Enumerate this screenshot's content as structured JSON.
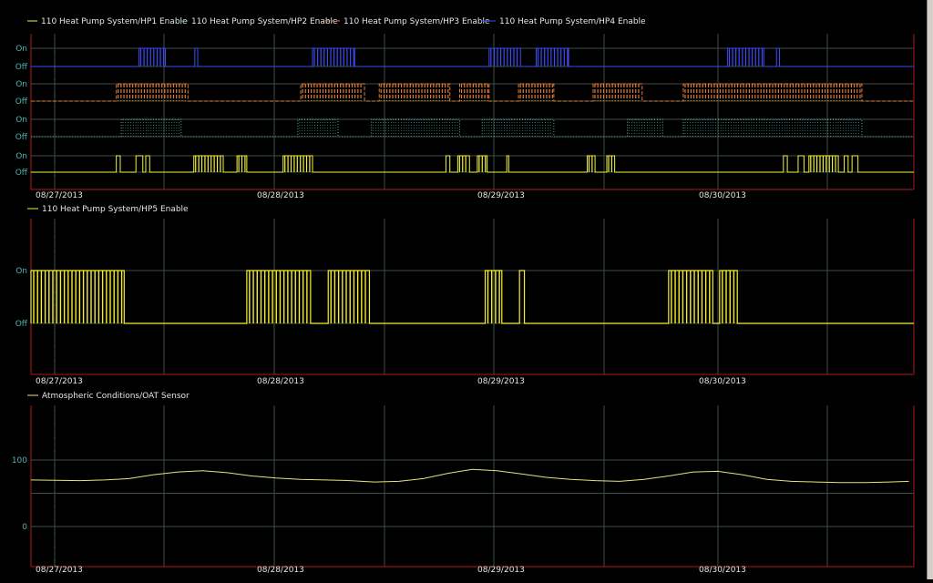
{
  "colors": {
    "background": "#000000",
    "axis": "#b01818",
    "grid": "#3c5046",
    "text": "#e6e6e6",
    "label": "#4fb3b8",
    "hp1": "#f2f23c",
    "hp2": "#5ab4a8",
    "hp3": "#e07b39",
    "hp4": "#3c4cf0",
    "hp5": "#f7ef2a",
    "oat": "#e8e27a"
  },
  "chart_data": [
    {
      "type": "line",
      "step": true,
      "x_ticks": [
        "08/27/2013",
        "08/28/2013",
        "08/29/2013",
        "08/30/2013"
      ],
      "y_ticks": [
        "On",
        "Off"
      ],
      "legend": [
        "110 Heat Pump System/HP1 Enable",
        "110 Heat Pump System/HP2 Enable",
        "110 Heat Pump System/HP3 Enable",
        "110 Heat Pump System/HP4 Enable"
      ],
      "series": [
        {
          "name": "110 Heat Pump System/HP1 Enable",
          "style": "solid",
          "on_intervals": [
            [
              0.87,
              0.91
            ],
            [
              1.07,
              1.14
            ],
            [
              1.17,
              1.21
            ],
            [
              1.66,
              1.96
            ],
            [
              2.1,
              2.2
            ],
            [
              2.57,
              2.87
            ],
            [
              4.23,
              4.27
            ],
            [
              4.35,
              4.47
            ],
            [
              4.55,
              4.65
            ],
            [
              4.85,
              4.87
            ],
            [
              5.67,
              5.75
            ],
            [
              5.87,
              5.95
            ],
            [
              7.67,
              7.71
            ],
            [
              7.82,
              7.88
            ],
            [
              7.93,
              8.23
            ],
            [
              8.29,
              8.33
            ],
            [
              8.37,
              8.43
            ]
          ]
        },
        {
          "name": "110 Heat Pump System/HP2 Enable",
          "style": "dotted",
          "on_intervals": [
            [
              0.92,
              1.53
            ],
            [
              2.72,
              3.13
            ],
            [
              3.47,
              4.37
            ],
            [
              4.6,
              5.33
            ],
            [
              6.08,
              6.44
            ],
            [
              6.65,
              8.47
            ]
          ]
        },
        {
          "name": "110 Heat Pump System/HP3 Enable",
          "style": "dashed",
          "on_intervals": [
            [
              0.87,
              1.6
            ],
            [
              2.75,
              3.4
            ],
            [
              3.55,
              4.27
            ],
            [
              4.37,
              4.67
            ],
            [
              4.97,
              5.33
            ],
            [
              5.73,
              6.23
            ],
            [
              6.65,
              8.47
            ]
          ]
        },
        {
          "name": "110 Heat Pump System/HP4 Enable",
          "style": "solid",
          "on_intervals": [
            [
              1.1,
              1.37
            ],
            [
              1.67,
              1.7
            ],
            [
              2.87,
              3.3
            ],
            [
              4.67,
              4.99
            ],
            [
              5.15,
              5.48
            ],
            [
              7.1,
              7.47
            ],
            [
              7.6,
              7.63
            ]
          ]
        }
      ]
    },
    {
      "type": "line",
      "step": true,
      "x_ticks": [
        "08/27/2013",
        "08/28/2013",
        "08/29/2013",
        "08/30/2013"
      ],
      "y_ticks": [
        "On",
        "Off"
      ],
      "legend": [
        "110 Heat Pump System/HP5 Enable"
      ],
      "series": [
        {
          "name": "110 Heat Pump System/HP5 Enable",
          "style": "solid",
          "on_intervals": [
            [
              0.0,
              0.95
            ],
            [
              2.2,
              2.85
            ],
            [
              3.03,
              3.45
            ],
            [
              4.63,
              4.8
            ],
            [
              4.98,
              5.03
            ],
            [
              6.5,
              6.95
            ],
            [
              7.02,
              7.2
            ]
          ]
        }
      ]
    },
    {
      "type": "line",
      "x_ticks": [
        "08/27/2013",
        "08/28/2013",
        "08/29/2013",
        "08/30/2013"
      ],
      "y_ticks": [
        "100",
        "0"
      ],
      "legend": [
        "Atmospheric Conditions/OAT Sensor"
      ],
      "x": [
        0.0,
        0.25,
        0.5,
        0.75,
        1.0,
        1.25,
        1.5,
        1.75,
        2.0,
        2.25,
        2.5,
        2.75,
        3.0,
        3.25,
        3.5,
        3.75,
        4.0,
        4.25,
        4.5,
        4.75,
        5.0,
        5.25,
        5.5,
        5.75,
        6.0,
        6.25,
        6.5,
        6.75,
        7.0,
        7.25,
        7.5,
        7.75,
        8.0,
        8.25,
        8.5,
        8.75,
        8.95
      ],
      "values": [
        70,
        69.5,
        69,
        70,
        72,
        78,
        82,
        84,
        81,
        76,
        73,
        71,
        70,
        69,
        67,
        68,
        72,
        80,
        86,
        84,
        79,
        74,
        71,
        69,
        68,
        71,
        76,
        82,
        83,
        78,
        71,
        68,
        67,
        66,
        66,
        67,
        68
      ]
    }
  ]
}
